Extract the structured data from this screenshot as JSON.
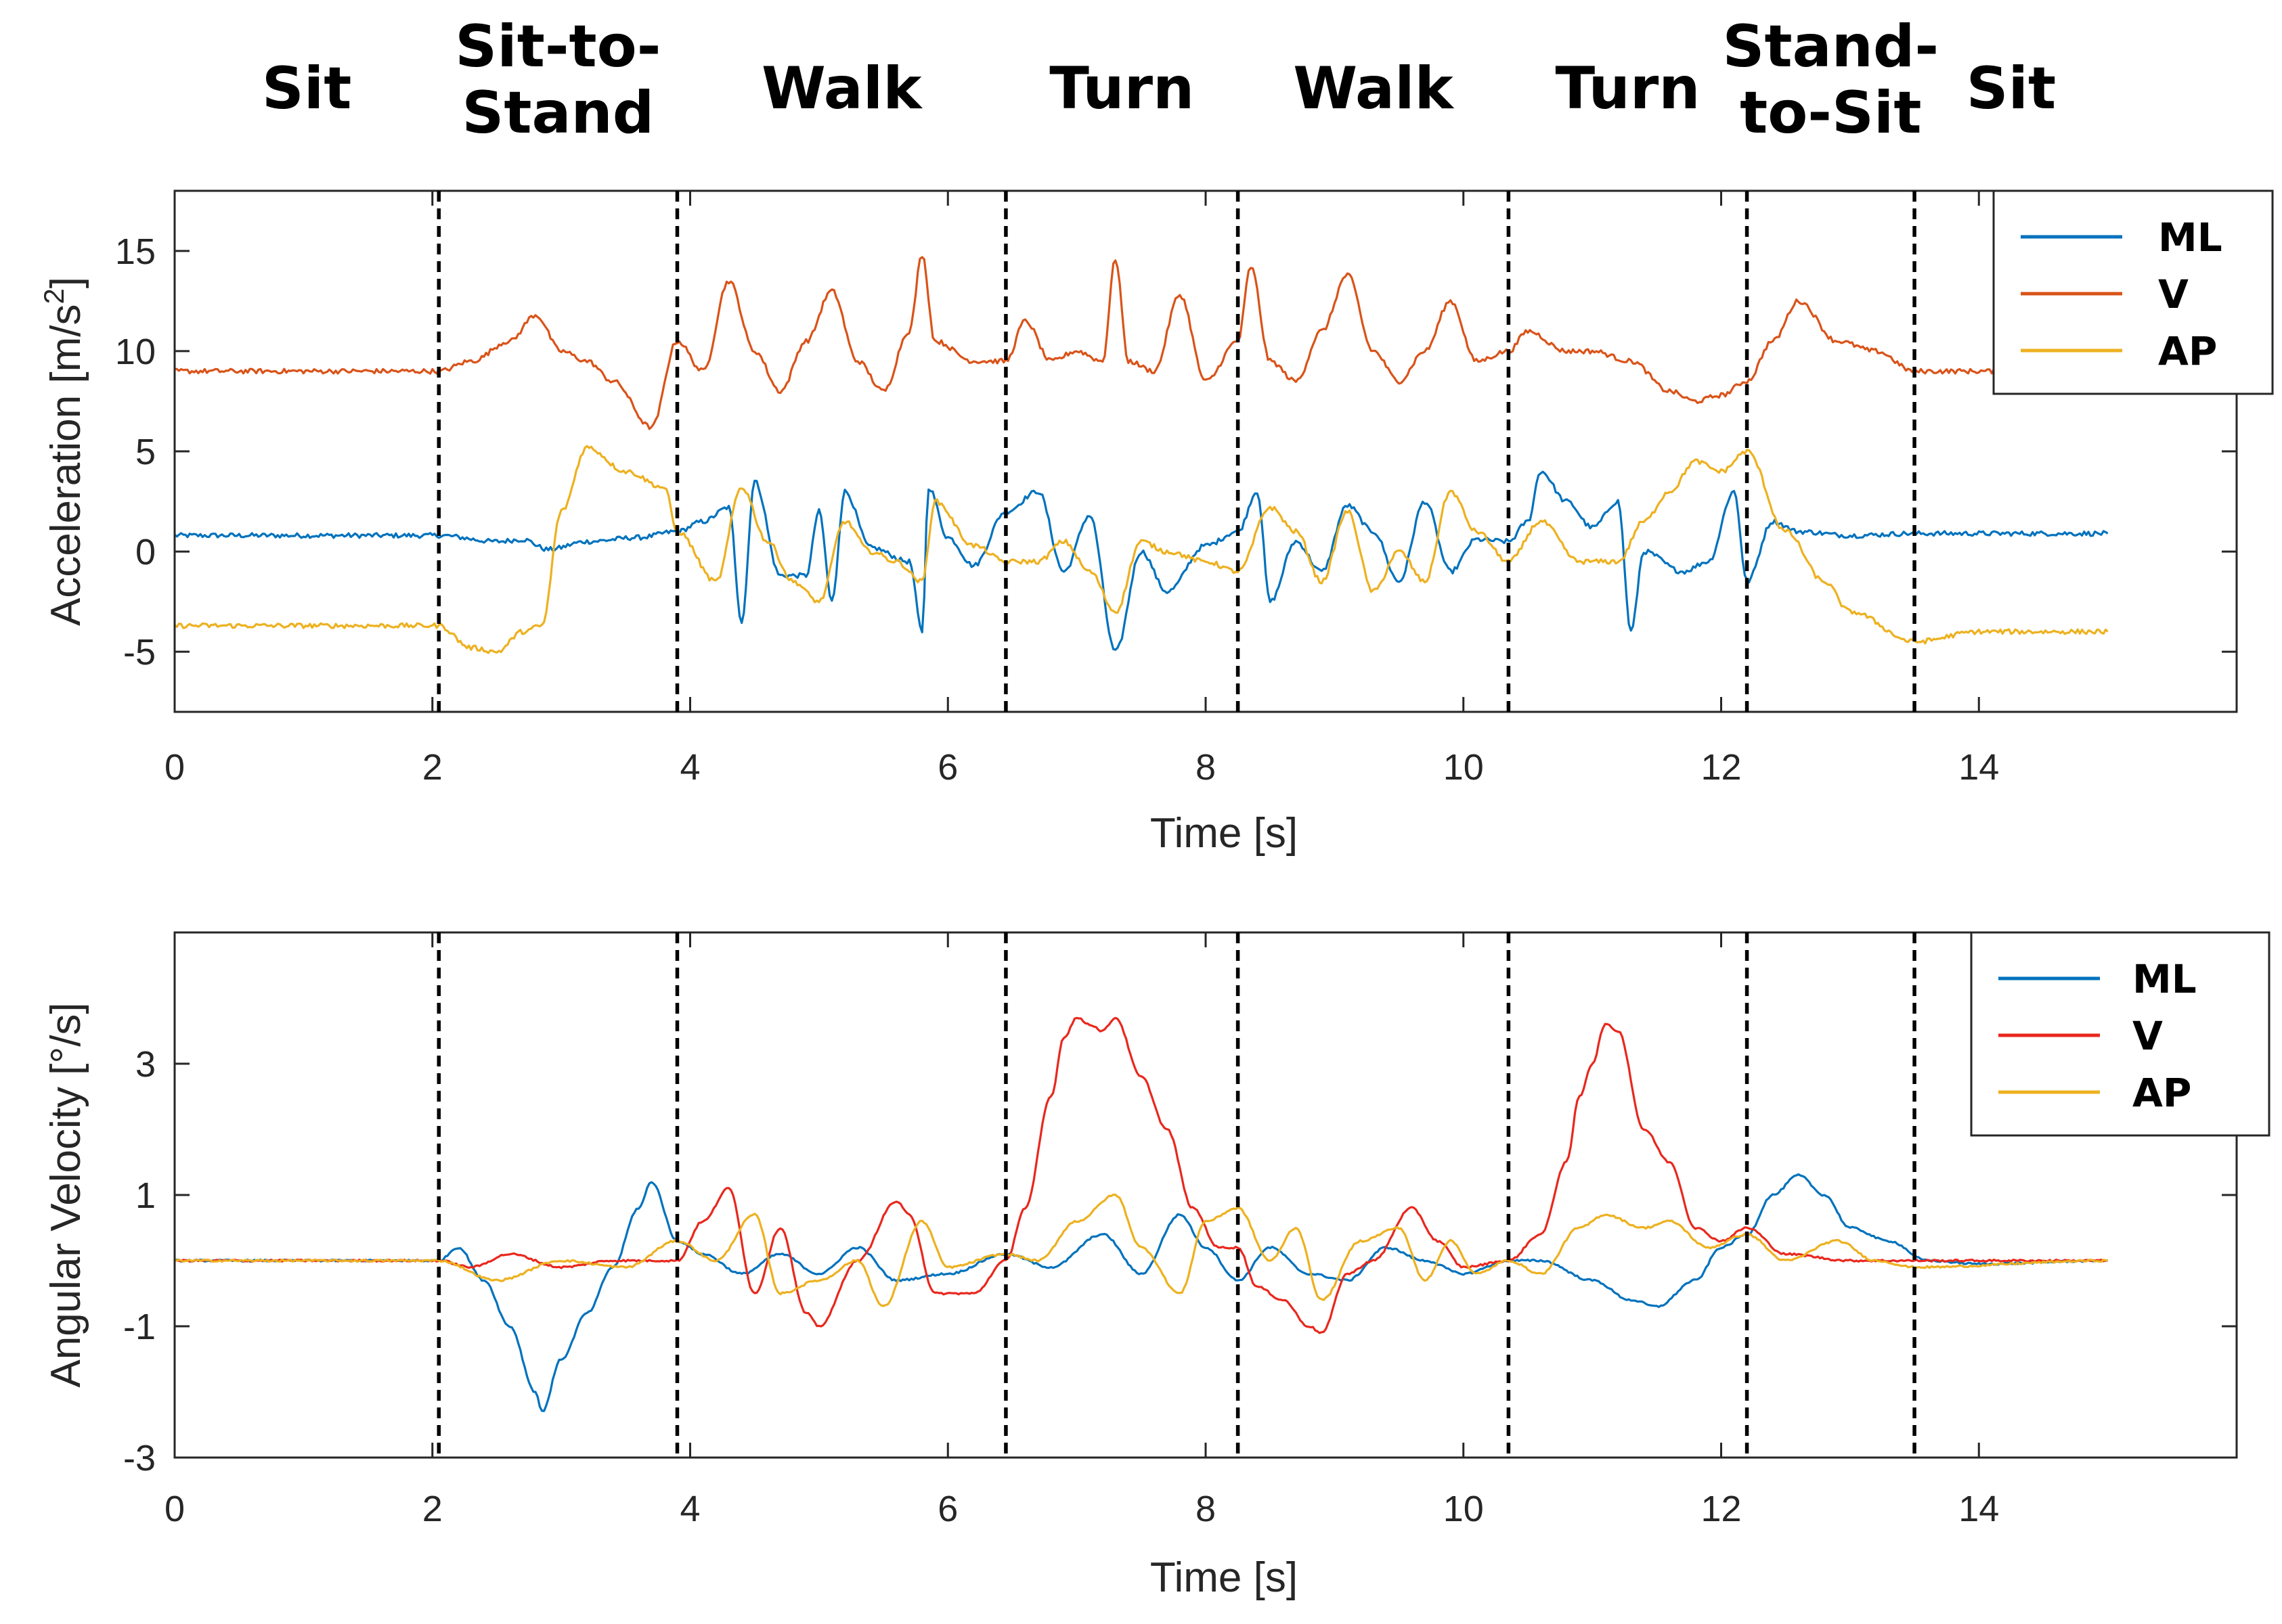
{
  "phases": [
    {
      "lines": [
        "Sit"
      ],
      "t_start": 0,
      "t_end": 2.05
    },
    {
      "lines": [
        "Sit-to-",
        "Stand"
      ],
      "t_start": 2.05,
      "t_end": 3.9
    },
    {
      "lines": [
        "Walk"
      ],
      "t_start": 3.9,
      "t_end": 6.45
    },
    {
      "lines": [
        "Turn"
      ],
      "t_start": 6.45,
      "t_end": 8.25
    },
    {
      "lines": [
        "Walk"
      ],
      "t_start": 8.25,
      "t_end": 10.35
    },
    {
      "lines": [
        "Turn"
      ],
      "t_start": 10.35,
      "t_end": 12.2
    },
    {
      "lines": [
        "Stand-",
        "to-Sit"
      ],
      "t_start": 12.2,
      "t_end": 13.5
    },
    {
      "lines": [
        "Sit"
      ],
      "t_start": 13.5,
      "t_end": 15.0
    }
  ],
  "colors": {
    "ML": "#0072BD",
    "V": "#D95319",
    "AP": "#EDB120",
    "V_gyro": "#E8281E"
  },
  "chart_data": [
    {
      "type": "line",
      "title": "",
      "xlabel": "Time [s]",
      "ylabel": "Acceleration [m/s",
      "ylabel_sup": "2",
      "ylabel_end": "]",
      "xlim": [
        0,
        16
      ],
      "ylim": [
        -8,
        18
      ],
      "xticks": [
        0,
        2,
        4,
        6,
        8,
        10,
        12,
        14
      ],
      "yticks": [
        -5,
        0,
        5,
        10,
        15
      ],
      "phase_boundaries": [
        2.05,
        3.9,
        6.45,
        8.25,
        10.35,
        12.2,
        13.5
      ],
      "legend": {
        "position": "top-right",
        "entries": [
          "ML",
          "V",
          "AP"
        ]
      },
      "series": [
        {
          "name": "ML",
          "color": "#0072BD",
          "t": [
            0,
            2.05,
            2.5,
            2.7,
            2.9,
            3.2,
            3.6,
            3.9,
            4.1,
            4.3,
            4.4,
            4.5,
            4.7,
            4.9,
            5.0,
            5.1,
            5.2,
            5.4,
            5.7,
            5.8,
            5.85,
            6.0,
            6.2,
            6.45,
            6.7,
            6.9,
            7.1,
            7.3,
            7.5,
            7.7,
            8.0,
            8.25,
            8.4,
            8.5,
            8.7,
            8.9,
            9.1,
            9.3,
            9.5,
            9.7,
            9.9,
            10.1,
            10.35,
            10.5,
            10.6,
            10.8,
            11.0,
            11.2,
            11.3,
            11.4,
            11.7,
            11.9,
            12.1,
            12.2,
            12.4,
            12.6,
            13.0,
            13.5,
            15.0
          ],
          "values": [
            0.8,
            0.8,
            0.5,
            0.6,
            0.1,
            0.5,
            0.7,
            1.0,
            1.5,
            2.2,
            -3.5,
            3.5,
            -1.2,
            -1.2,
            2.0,
            -2.5,
            3.0,
            0.2,
            -0.5,
            -4.0,
            3.2,
            0.7,
            -0.7,
            2.0,
            3.0,
            -1.0,
            1.8,
            -5.0,
            0.0,
            -2.0,
            0.3,
            1.0,
            3.0,
            -2.5,
            0.5,
            -1.0,
            2.3,
            1.0,
            -1.5,
            2.5,
            -1.0,
            0.6,
            0.5,
            1.5,
            4.0,
            2.5,
            1.2,
            2.5,
            -4.0,
            0.0,
            -1.0,
            -0.5,
            3.0,
            -1.5,
            1.5,
            1.0,
            0.8,
            0.9,
            0.9
          ]
        },
        {
          "name": "V",
          "color": "#D95319",
          "t": [
            0,
            2.05,
            2.3,
            2.6,
            2.8,
            3.0,
            3.2,
            3.4,
            3.7,
            3.9,
            4.1,
            4.3,
            4.5,
            4.7,
            4.9,
            5.1,
            5.3,
            5.5,
            5.7,
            5.8,
            5.9,
            6.2,
            6.45,
            6.6,
            6.8,
            7.0,
            7.2,
            7.3,
            7.4,
            7.6,
            7.8,
            8.0,
            8.25,
            8.35,
            8.5,
            8.7,
            8.9,
            9.1,
            9.3,
            9.5,
            9.7,
            9.9,
            10.1,
            10.35,
            10.5,
            10.8,
            11.0,
            11.3,
            11.6,
            11.8,
            12.0,
            12.2,
            12.4,
            12.6,
            12.9,
            13.2,
            13.5,
            15.0
          ],
          "values": [
            9.0,
            9.0,
            9.5,
            10.5,
            11.8,
            10.0,
            9.5,
            8.5,
            6.2,
            10.5,
            9.0,
            13.5,
            10.0,
            8.0,
            10.5,
            13.0,
            9.5,
            8.0,
            11.0,
            14.8,
            10.5,
            9.5,
            9.5,
            11.5,
            9.5,
            10.0,
            9.5,
            14.6,
            9.5,
            9.0,
            12.8,
            8.5,
            10.5,
            14.2,
            9.5,
            8.5,
            11.0,
            13.8,
            10.0,
            8.5,
            10.0,
            12.5,
            9.5,
            10.0,
            11.0,
            10.0,
            10.0,
            9.5,
            8.0,
            7.5,
            7.8,
            8.5,
            10.5,
            12.5,
            10.5,
            10.0,
            9.0,
            9.0
          ]
        },
        {
          "name": "AP",
          "color": "#EDB120",
          "t": [
            0,
            2.05,
            2.3,
            2.5,
            2.7,
            2.85,
            3.0,
            3.2,
            3.5,
            3.8,
            3.9,
            4.2,
            4.4,
            4.6,
            4.8,
            5.0,
            5.2,
            5.4,
            5.6,
            5.8,
            5.9,
            6.2,
            6.45,
            6.7,
            6.9,
            7.1,
            7.3,
            7.5,
            7.7,
            8.0,
            8.25,
            8.5,
            8.7,
            8.9,
            9.1,
            9.3,
            9.5,
            9.7,
            9.9,
            10.1,
            10.35,
            10.6,
            10.9,
            11.2,
            11.4,
            11.6,
            11.8,
            12.0,
            12.2,
            12.5,
            12.8,
            13.0,
            13.5,
            14.0,
            15.0
          ],
          "values": [
            -3.7,
            -3.7,
            -4.8,
            -5.0,
            -4.0,
            -3.7,
            2.0,
            5.2,
            4.0,
            3.2,
            1.0,
            -1.5,
            3.2,
            0.5,
            -1.5,
            -2.5,
            1.5,
            0.0,
            -0.5,
            -1.5,
            2.5,
            0.3,
            -0.5,
            -0.5,
            0.5,
            -1.0,
            -3.0,
            0.5,
            0.0,
            -0.5,
            -1.0,
            2.2,
            1.0,
            -1.5,
            2.0,
            -2.0,
            0.0,
            -1.5,
            3.0,
            1.0,
            -0.5,
            1.5,
            -0.5,
            -0.5,
            1.5,
            3.0,
            4.5,
            4.0,
            5.0,
            1.0,
            -1.5,
            -3.0,
            -4.5,
            -4.0,
            -4.0
          ]
        }
      ]
    },
    {
      "type": "line",
      "title": "",
      "xlabel": "Time [s]",
      "ylabel": "Angular Velocity [°/s]",
      "xlim": [
        0,
        16
      ],
      "ylim": [
        -3,
        5
      ],
      "xticks": [
        0,
        2,
        4,
        6,
        8,
        10,
        12,
        14
      ],
      "yticks": [
        -3,
        -1,
        1,
        3
      ],
      "phase_boundaries": [
        2.05,
        3.9,
        6.45,
        8.25,
        10.35,
        12.2,
        13.5
      ],
      "legend": {
        "position": "top-right",
        "entries": [
          "ML",
          "V",
          "AP"
        ]
      },
      "series": [
        {
          "name": "ML",
          "color": "#0072BD",
          "t": [
            0,
            2.05,
            2.2,
            2.4,
            2.6,
            2.8,
            2.85,
            3.0,
            3.2,
            3.4,
            3.6,
            3.7,
            3.9,
            4.1,
            4.4,
            4.7,
            5.0,
            5.3,
            5.6,
            6.0,
            6.45,
            6.8,
            7.2,
            7.5,
            7.8,
            8.0,
            8.25,
            8.5,
            8.8,
            9.1,
            9.4,
            9.7,
            10.0,
            10.35,
            10.6,
            11.0,
            11.3,
            11.5,
            11.8,
            12.0,
            12.2,
            12.4,
            12.6,
            12.8,
            13.0,
            13.3,
            13.6,
            14.0,
            15.0
          ],
          "values": [
            0.0,
            0.0,
            0.2,
            -0.3,
            -1.0,
            -2.0,
            -2.3,
            -1.5,
            -0.8,
            -0.1,
            0.8,
            1.2,
            0.3,
            0.1,
            -0.2,
            0.1,
            -0.2,
            0.2,
            -0.3,
            -0.2,
            0.1,
            -0.1,
            0.4,
            -0.2,
            0.7,
            0.2,
            -0.3,
            0.2,
            -0.2,
            -0.3,
            0.2,
            0.0,
            -0.2,
            0.0,
            0.0,
            -0.3,
            -0.6,
            -0.7,
            -0.3,
            0.2,
            0.4,
            1.0,
            1.3,
            1.0,
            0.5,
            0.3,
            0.0,
            -0.05,
            0.0
          ]
        },
        {
          "name": "V",
          "color": "#E8281E",
          "t": [
            0,
            2.05,
            2.3,
            2.6,
            3.0,
            3.4,
            3.9,
            4.1,
            4.3,
            4.5,
            4.7,
            4.9,
            5.0,
            5.3,
            5.6,
            5.7,
            5.9,
            6.2,
            6.45,
            6.6,
            6.8,
            6.9,
            7.0,
            7.1,
            7.2,
            7.3,
            7.5,
            7.7,
            7.9,
            8.1,
            8.25,
            8.4,
            8.6,
            8.8,
            8.9,
            9.1,
            9.3,
            9.6,
            9.8,
            10.0,
            10.35,
            10.6,
            10.8,
            10.9,
            11.0,
            11.1,
            11.2,
            11.4,
            11.6,
            11.8,
            12.0,
            12.2,
            12.5,
            13.0,
            13.5,
            15.0
          ],
          "values": [
            0.0,
            0.0,
            -0.1,
            0.1,
            -0.1,
            0.0,
            0.0,
            0.6,
            1.1,
            -0.5,
            0.5,
            -0.8,
            -1.0,
            0.0,
            0.9,
            0.7,
            -0.5,
            -0.5,
            0.0,
            0.8,
            2.5,
            3.4,
            3.7,
            3.6,
            3.5,
            3.7,
            2.8,
            2.0,
            0.8,
            0.2,
            0.2,
            -0.4,
            -0.6,
            -1.0,
            -1.1,
            -0.2,
            0.0,
            0.8,
            0.3,
            -0.1,
            0.0,
            0.4,
            1.5,
            2.5,
            3.0,
            3.6,
            3.5,
            2.0,
            1.5,
            0.5,
            0.3,
            0.5,
            0.1,
            0.0,
            0.0,
            0.0
          ]
        },
        {
          "name": "AP",
          "color": "#EDB120",
          "t": [
            0,
            2.05,
            2.5,
            3.0,
            3.5,
            3.9,
            4.2,
            4.5,
            4.7,
            5.0,
            5.3,
            5.5,
            5.8,
            6.0,
            6.45,
            6.7,
            7.0,
            7.3,
            7.5,
            7.8,
            8.0,
            8.25,
            8.5,
            8.7,
            8.9,
            9.2,
            9.5,
            9.7,
            9.9,
            10.1,
            10.35,
            10.6,
            10.9,
            11.1,
            11.4,
            11.6,
            11.9,
            12.2,
            12.5,
            12.9,
            13.2,
            13.5,
            15.0
          ],
          "values": [
            0.0,
            0.0,
            -0.3,
            0.0,
            -0.1,
            0.3,
            0.0,
            0.7,
            -0.5,
            -0.3,
            0.0,
            -0.7,
            0.6,
            -0.1,
            0.1,
            0.0,
            0.6,
            1.0,
            0.2,
            -0.5,
            0.6,
            0.8,
            0.0,
            0.5,
            -0.6,
            0.3,
            0.5,
            -0.3,
            0.3,
            -0.2,
            0.0,
            -0.2,
            0.5,
            0.7,
            0.5,
            0.6,
            0.2,
            0.4,
            0.0,
            0.3,
            0.0,
            -0.1,
            0.0
          ]
        }
      ]
    }
  ]
}
